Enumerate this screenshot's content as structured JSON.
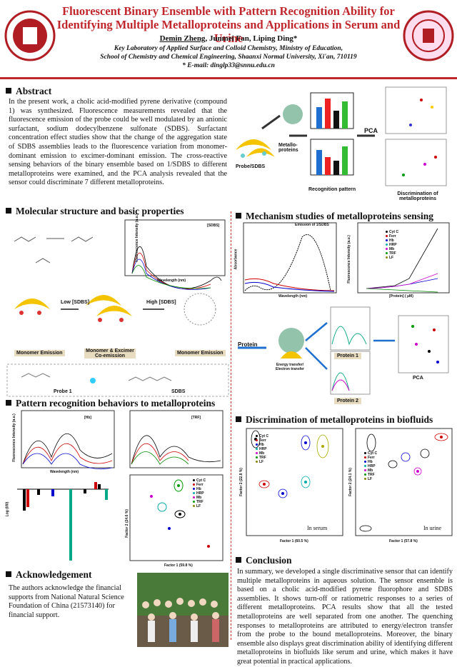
{
  "header": {
    "title": "Fluorescent Binary Ensemble with Pattern Recognition Ability for Identifying Multiple Metalloproteins and Applications in Serum and Urine",
    "presenter": "Demin Zheng",
    "coauthors": ", Junmei Fan, Liping Ding*",
    "affiliation_1": "Key Laboratory of Applied Surface and Colloid Chemistry, Ministry of Education,",
    "affiliation_2": "School of Chemistry and Chemical Engineering, Shaanxi Normal University, Xi'an, 710119",
    "email": "* E-mail: dinglp33@snnu.edu.cn"
  },
  "abstract": {
    "heading": "Abstract",
    "text": "In the present work, a cholic acid-modified pyrene derivative (compound 1) was synthesized. Fluorescence measurements revealed that the fluorescence emission of the probe could be well modulated by an anionic surfactant, sodium dodecylbenzene sulfonate (SDBS). Surfactant concentration effect studies show that the change of the aggregation state of SDBS assemblies leads to the fluorescence variation from monomer-dominant emission to excimer-dominant emission. The cross-reactive sensing behaviors of the binary ensemble based on 1/SDBS to different metalloproteins were examined, and the PCA analysis revealed that the sensor could discriminate 7 different metalloproteins.",
    "labels": [
      "Probe/SDBS",
      "Metallo-proteins",
      "Recognition pattern",
      "PCA",
      "Discrimination of metalloproteins"
    ]
  },
  "proteins": [
    "Cyt C",
    "Ferr",
    "Hb",
    "HRP",
    "Mb",
    "TRF",
    "LF"
  ],
  "molecular": {
    "heading": "Molecular structure and basic properties",
    "labels": [
      "Monomer Emission",
      "Low [SDBS]",
      "Monomer & Excimer Co-emission",
      "High [SDBS]",
      "Monomer Emission",
      "Probe 1",
      "SDBS",
      "Fluorescence Intensity (a.u.)",
      "Wavelength (nm)",
      "[SDBS]"
    ]
  },
  "pattern": {
    "heading": "Pattern recognition behaviors to metalloproteins",
    "labels": [
      "[Hb]",
      "[TRF]",
      "Fluorescence Intensity (a.u.)",
      "Wavelength (nm)",
      "Factor 1 (59.8 %)",
      "Factor 2 (24.6 %)",
      "Log (I/I0)"
    ]
  },
  "acknowledgement": {
    "heading": "Acknowledgement",
    "text": "The authors acknowledge the financial supports from National Natural Science Foundation of China (21573140) for financial support."
  },
  "mechanism": {
    "heading": "Mechanism studies of metalloproteins sensing",
    "labels": [
      "Emission of 1/SDBS",
      "Absorbance",
      "Wavelength (nm)",
      "Fluorescence Intensity (a.u.)",
      "[Protein] ( μM)",
      "Protein",
      "Energy transfer/ Electron transfer",
      "Protein 1",
      "Protein 2",
      "PCA"
    ]
  },
  "discrimination": {
    "heading": "Discrimination of metalloproteins in biofluids",
    "labels": [
      "In serum",
      "In urine",
      "Factor 1 (60.5 %)",
      "Factor 1 (57.8 %)",
      "Factor 2 (22.8 %)",
      "Factor 2 (24.1 %)"
    ]
  },
  "conclusion": {
    "heading": "Conclusion",
    "text": "In summary, we developed a single discriminative sensor that can identify multiple metalloproteins in aqueous solution. The sensor ensemble is based on a cholic acid-modified pyrene fluorophore and SDBS assemblies. It shows turn-off or ratiometric responses to a series of different metalloproteins. PCA results show that all the tested metalloproteins are well separated from one another. The quenching responses to metalloproteins are attributed to energy/electron transfer from the probe to the bound metalloproteins. Moreover, the binary ensemble also displays great discrimination ability of identifying different metalloproteins in biofluids like serum and urine, which makes it have great potential in practical applications."
  }
}
